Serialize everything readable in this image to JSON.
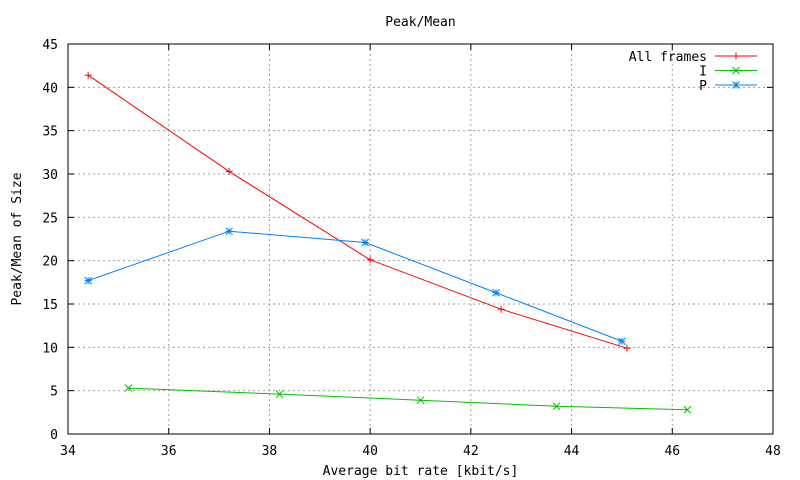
{
  "chart_data": {
    "type": "line",
    "title": "Peak/Mean",
    "xlabel": "Average bit rate [kbit/s]",
    "ylabel": "Peak/Mean of Size",
    "xlim": [
      34,
      48
    ],
    "ylim": [
      0,
      45
    ],
    "xticks": [
      34,
      36,
      38,
      40,
      42,
      44,
      46,
      48
    ],
    "yticks": [
      0,
      5,
      10,
      15,
      20,
      25,
      30,
      35,
      40,
      45
    ],
    "grid": true,
    "legend_position": "top-right",
    "series": [
      {
        "name": "All frames",
        "color": "#ff0000",
        "marker": "plus",
        "points": [
          [
            34.4,
            41.4
          ],
          [
            37.2,
            30.3
          ],
          [
            40.0,
            20.1
          ],
          [
            42.6,
            14.4
          ],
          [
            45.1,
            9.9
          ]
        ]
      },
      {
        "name": "I",
        "color": "#00c000",
        "marker": "cross",
        "points": [
          [
            35.2,
            5.3
          ],
          [
            38.2,
            4.6
          ],
          [
            41.0,
            3.9
          ],
          [
            43.7,
            3.2
          ],
          [
            46.3,
            2.8
          ]
        ]
      },
      {
        "name": "P",
        "color": "#0080ff",
        "marker": "star",
        "points": [
          [
            34.4,
            17.7
          ],
          [
            37.2,
            23.4
          ],
          [
            39.9,
            22.1
          ],
          [
            42.5,
            16.3
          ],
          [
            45.0,
            10.7
          ]
        ]
      }
    ]
  }
}
